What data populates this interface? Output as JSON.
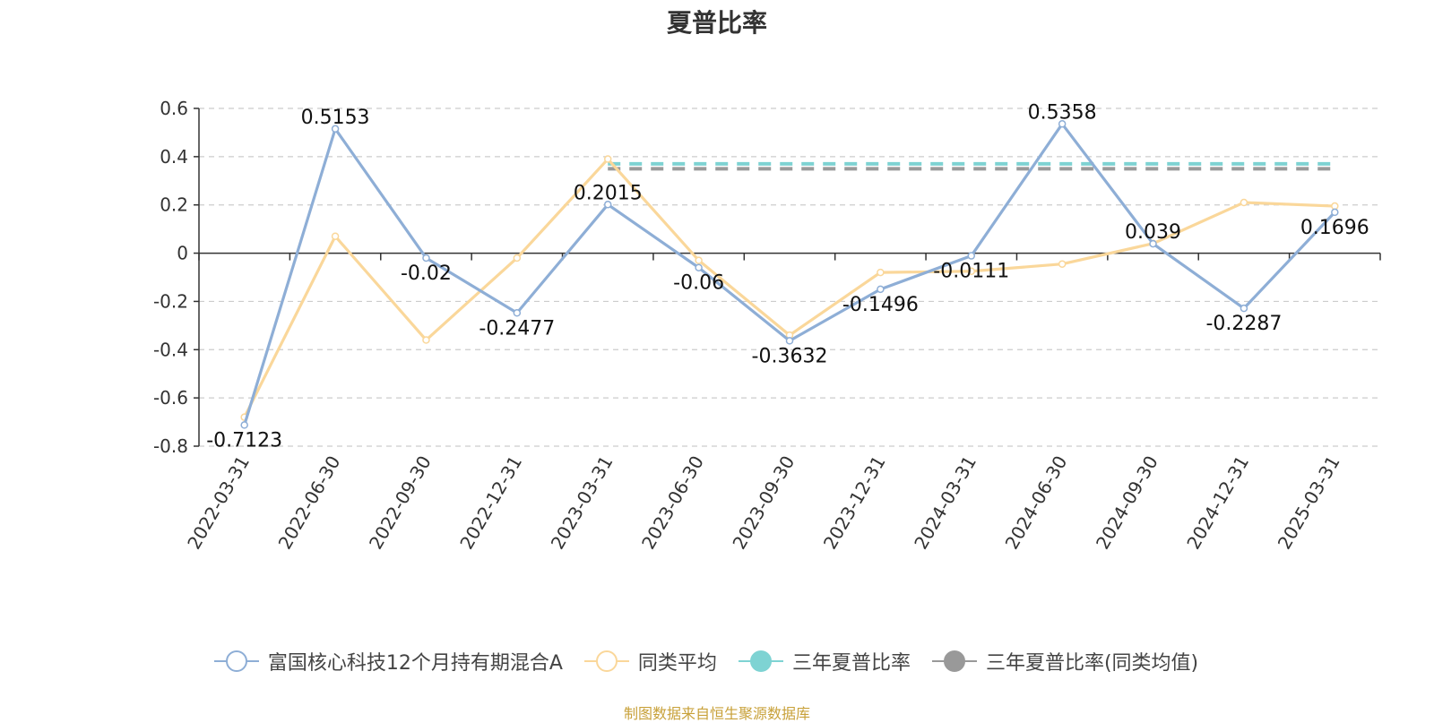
{
  "chart_data": {
    "type": "line",
    "title": "夏普比率",
    "categories": [
      "2022-03-31",
      "2022-06-30",
      "2022-09-30",
      "2022-12-31",
      "2023-03-31",
      "2023-06-30",
      "2023-09-30",
      "2023-12-31",
      "2024-03-31",
      "2024-06-30",
      "2024-09-30",
      "2024-12-31",
      "2025-03-31"
    ],
    "ylim": [
      -0.8,
      0.6
    ],
    "yticks": [
      0.6,
      0.4,
      0.2,
      0,
      -0.2,
      -0.4,
      -0.6,
      -0.8
    ],
    "ytick_labels": [
      "0.6",
      "0.4",
      "0.2",
      "0",
      "-0.2",
      "-0.4",
      "-0.6",
      "-0.8"
    ],
    "grid": true,
    "legend_position": "bottom",
    "series": [
      {
        "name": "富国核心科技12个月持有期混合A",
        "color": "#8eaed6",
        "values": [
          -0.7123,
          0.5153,
          -0.02,
          -0.2477,
          0.2015,
          -0.06,
          -0.3632,
          -0.1496,
          -0.0111,
          0.5358,
          0.039,
          -0.2287,
          0.1696
        ],
        "labels": [
          "-0.7123",
          "0.5153",
          "-0.02",
          "-0.2477",
          "0.2015",
          "-0.06",
          "-0.3632",
          "-0.1496",
          "-0.0111",
          "0.5358",
          "0.039",
          "-0.2287",
          "0.1696"
        ]
      },
      {
        "name": "同类平均",
        "color": "#fad79a",
        "values": [
          -0.68,
          0.07,
          -0.36,
          -0.02,
          0.39,
          -0.03,
          -0.34,
          -0.08,
          -0.075,
          -0.045,
          0.04,
          0.21,
          0.195
        ]
      },
      {
        "name": "三年夏普比率",
        "color": "#7ed3d3",
        "type": "dashed",
        "from": "2023-03-31",
        "to": "2025-03-31",
        "value": 0.37
      },
      {
        "name": "三年夏普比率(同类均值)",
        "color": "#999999",
        "type": "dashed",
        "from": "2023-03-31",
        "to": "2025-03-31",
        "value": 0.35
      }
    ]
  },
  "source": "制图数据来自恒生聚源数据库"
}
